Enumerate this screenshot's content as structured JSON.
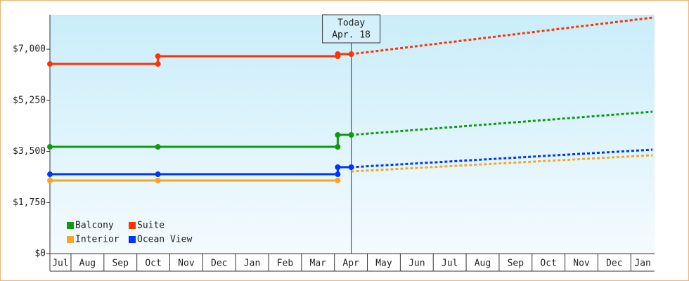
{
  "chart_data": {
    "type": "line",
    "categories": [
      "Jul",
      "Aug",
      "Sep",
      "Oct",
      "Nov",
      "Dec",
      "Jan",
      "Feb",
      "Mar",
      "Apr",
      "May",
      "Jun",
      "Jul",
      "Aug",
      "Sep",
      "Oct",
      "Nov",
      "Dec",
      "Jan"
    ],
    "xlim": [
      0.36,
      18.72
    ],
    "ylim": [
      0,
      8180
    ],
    "yticks": [
      {
        "value": 0,
        "label": "$0"
      },
      {
        "value": 1750,
        "label": "$1,750"
      },
      {
        "value": 3500,
        "label": "$3,500"
      },
      {
        "value": 5250,
        "label": "$5,250"
      },
      {
        "value": 7000,
        "label": "$7,000"
      }
    ],
    "annotation": {
      "x": 9.51,
      "lines": [
        "Today",
        "Apr. 18"
      ]
    },
    "legend": "bottom-left",
    "series": [
      {
        "name": "Balcony",
        "color": "#119911",
        "history": {
          "x": [
            0.36,
            3.64,
            9.1,
            9.1,
            9.51
          ],
          "values": [
            3656,
            3656,
            3656,
            4065,
            4065
          ]
        },
        "forecast": {
          "x": [
            9.51,
            18.66
          ],
          "values": [
            4065,
            4859
          ]
        }
      },
      {
        "name": "Suite",
        "color": "#ff3300",
        "history": {
          "x": [
            0.36,
            3.64,
            3.64,
            9.1,
            9.1,
            9.51
          ],
          "values": [
            6495,
            6495,
            6760,
            6760,
            6832,
            6832
          ]
        },
        "forecast": {
          "x": [
            9.51,
            18.66
          ],
          "values": [
            6832,
            8082
          ]
        }
      },
      {
        "name": "Interior",
        "color": "#f5a623",
        "history": {
          "x": [
            0.36,
            3.64,
            9.1
          ],
          "values": [
            2502,
            2502,
            2502
          ]
        },
        "forecast": {
          "x": [
            9.51,
            18.66
          ],
          "values": [
            2814,
            3368
          ]
        }
      },
      {
        "name": "Ocean View",
        "color": "#0033ff",
        "history": {
          "x": [
            0.36,
            3.64,
            9.1,
            9.1,
            9.51
          ],
          "values": [
            2718,
            2718,
            2718,
            2959,
            2959
          ]
        },
        "forecast": {
          "x": [
            9.51,
            18.66
          ],
          "values": [
            2959,
            3560
          ]
        }
      }
    ]
  }
}
